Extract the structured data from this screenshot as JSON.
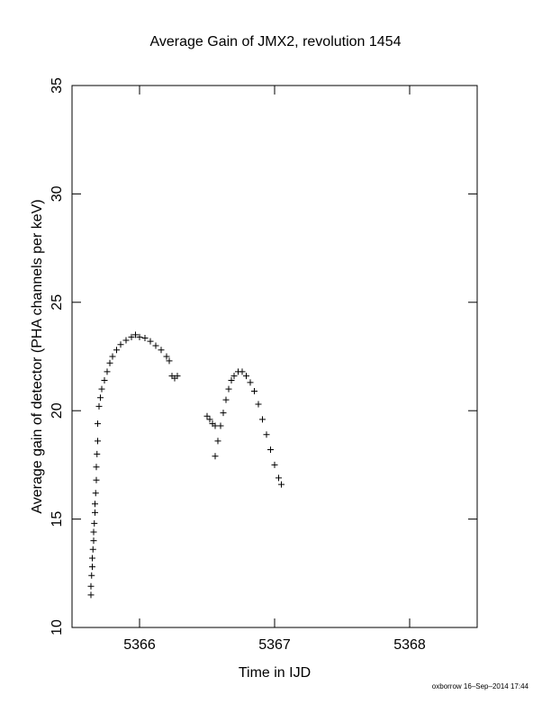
{
  "chart_data": {
    "type": "scatter",
    "title": "Average Gain of JMX2, revolution 1454",
    "x_label": "Time in IJD",
    "y_label": "Average gain of detector (PHA channels per keV)",
    "footer": "oxborrow 16–Sep–2014 17:44",
    "marker": "+",
    "color": "#000000",
    "xlim": [
      5365.5,
      5368.5
    ],
    "xticks": [
      5366,
      5367,
      5368
    ],
    "ylim": [
      10,
      35
    ],
    "yticks": [
      10,
      15,
      20,
      25,
      30,
      35
    ],
    "x": [
      5365.64,
      5365.64,
      5365.645,
      5365.65,
      5365.65,
      5365.655,
      5365.66,
      5365.66,
      5365.665,
      5365.67,
      5365.67,
      5365.675,
      5365.68,
      5365.68,
      5365.685,
      5365.69,
      5365.69,
      5365.7,
      5365.71,
      5365.72,
      5365.74,
      5365.76,
      5365.78,
      5365.8,
      5365.83,
      5365.86,
      5365.9,
      5365.94,
      5365.97,
      5366.0,
      5366.04,
      5366.08,
      5366.12,
      5366.16,
      5366.2,
      5366.22,
      5366.24,
      5366.26,
      5366.28,
      5366.5,
      5366.52,
      5366.54,
      5366.56,
      5366.56,
      5366.58,
      5366.6,
      5366.62,
      5366.64,
      5366.66,
      5366.68,
      5366.7,
      5366.73,
      5366.76,
      5366.79,
      5366.82,
      5366.85,
      5366.88,
      5366.91,
      5366.94,
      5366.97,
      5367.0,
      5367.03,
      5367.05
    ],
    "values": [
      11.5,
      11.9,
      12.4,
      12.8,
      13.2,
      13.6,
      14.0,
      14.4,
      14.8,
      15.3,
      15.7,
      16.2,
      16.8,
      17.4,
      18.0,
      18.6,
      19.4,
      20.2,
      20.6,
      21.0,
      21.4,
      21.8,
      22.2,
      22.5,
      22.8,
      23.05,
      23.25,
      23.4,
      23.5,
      23.4,
      23.35,
      23.2,
      23.0,
      22.8,
      22.5,
      22.3,
      21.6,
      21.5,
      21.6,
      19.75,
      19.6,
      19.4,
      19.3,
      17.9,
      18.6,
      19.3,
      19.9,
      20.5,
      21.0,
      21.4,
      21.6,
      21.8,
      21.8,
      21.6,
      21.3,
      20.9,
      20.3,
      19.6,
      18.9,
      18.2,
      17.5,
      16.9,
      16.6
    ]
  }
}
